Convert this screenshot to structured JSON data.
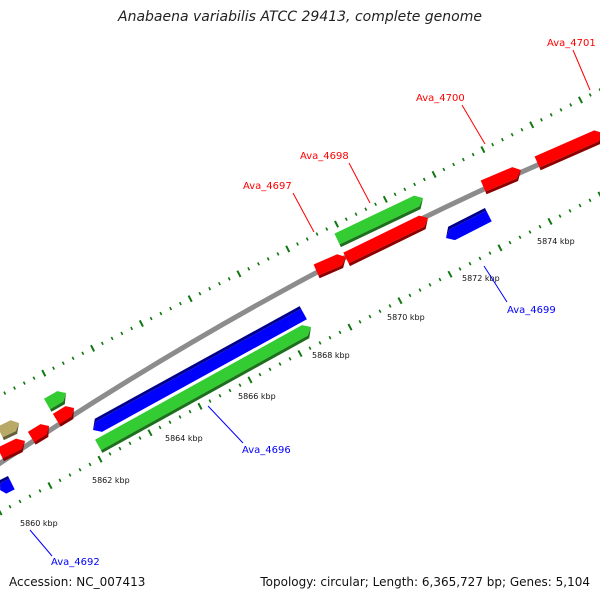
{
  "title": "Anabaena variabilis ATCC 29413, complete genome",
  "footer": {
    "accession": "Accession: NC_007413",
    "topology": "Topology: circular; Length: 6,365,727 bp; Genes: 5,104"
  },
  "colors": {
    "forward_gene": "#ff0000",
    "reverse_gene": "#0000ff",
    "rna_gene": "#33cc33",
    "other_gene": "#b8aa66",
    "backbone": "#8c8c8c",
    "ticks": "#117711"
  },
  "scale_labels": [
    "5860 kbp",
    "5862 kbp",
    "5864 kbp",
    "5866 kbp",
    "5868 kbp",
    "5870 kbp",
    "5872 kbp",
    "5874 kbp"
  ],
  "gene_labels": [
    {
      "text": "Ava_4692",
      "strand": "reverse"
    },
    {
      "text": "Ava_4696",
      "strand": "reverse"
    },
    {
      "text": "Ava_4697",
      "strand": "forward"
    },
    {
      "text": "Ava_4698",
      "strand": "forward"
    },
    {
      "text": "Ava_4699",
      "strand": "reverse"
    },
    {
      "text": "Ava_4700",
      "strand": "forward"
    },
    {
      "text": "Ava_4701",
      "strand": "forward"
    }
  ]
}
